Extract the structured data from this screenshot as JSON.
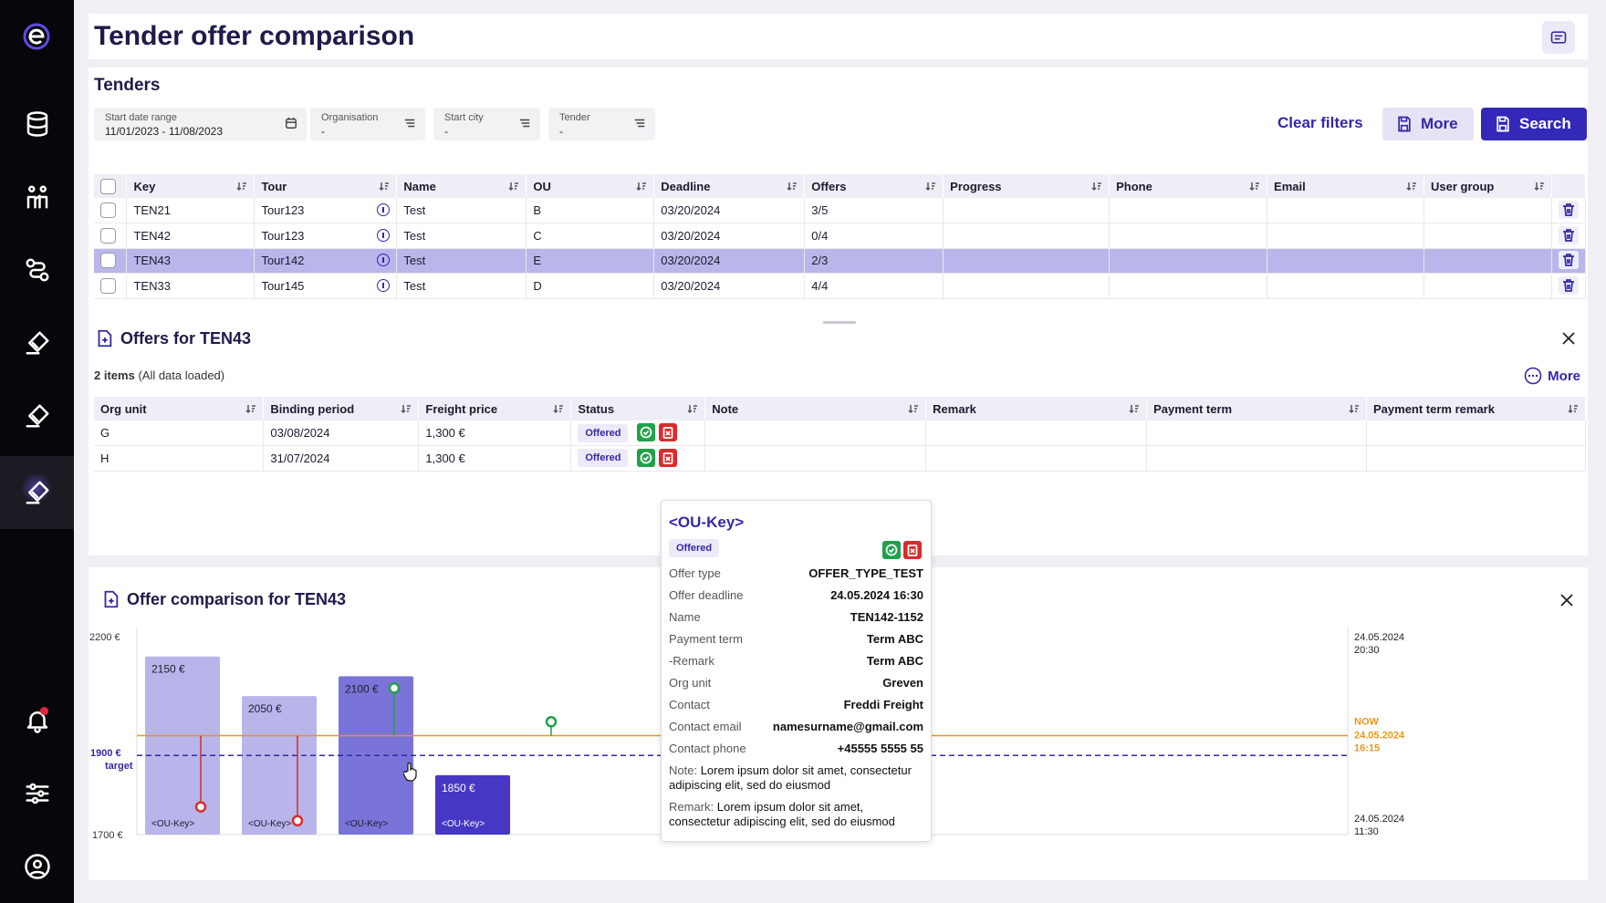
{
  "page": {
    "title": "Tender offer comparison"
  },
  "tenders": {
    "title": "Tenders",
    "filters": [
      {
        "label": "Start date range",
        "value": "11/01/2023 - 11/08/2023",
        "icon": "calendar-icon"
      },
      {
        "label": "Organisation",
        "value": "-",
        "icon": "filter-lines-icon"
      },
      {
        "label": "Start city",
        "value": "-",
        "icon": "filter-lines-icon"
      },
      {
        "label": "Tender",
        "value": "-",
        "icon": "filter-lines-icon"
      }
    ],
    "clear_filters": "Clear filters",
    "more_label": "More",
    "search_label": "Search",
    "columns": [
      "Key",
      "Tour",
      "Name",
      "OU",
      "Deadline",
      "Offers",
      "Progress",
      "Phone",
      "Email",
      "User group"
    ],
    "rows": [
      {
        "key": "TEN21",
        "tour": "Tour123",
        "name": "Test",
        "ou": "B",
        "deadline": "03/20/2024",
        "offers": "3/5"
      },
      {
        "key": "TEN42",
        "tour": "Tour123",
        "name": "Test",
        "ou": "C",
        "deadline": "03/20/2024",
        "offers": "0/4"
      },
      {
        "key": "TEN43",
        "tour": "Tour142",
        "name": "Test",
        "ou": "E",
        "deadline": "03/20/2024",
        "offers": "2/3",
        "selected": true
      },
      {
        "key": "TEN33",
        "tour": "Tour145",
        "name": "Test",
        "ou": "D",
        "deadline": "03/20/2024",
        "offers": "4/4"
      }
    ]
  },
  "offers": {
    "title": "Offers for TEN43",
    "count_label": "2 items",
    "loaded_label": "(All data loaded)",
    "more_label": "More",
    "columns": [
      "Org unit",
      "Binding period",
      "Freight price",
      "Status",
      "Note",
      "Remark",
      "Payment term",
      "Payment term remark"
    ],
    "rows": [
      {
        "org_unit": "G",
        "binding_period": "03/08/2024",
        "freight_price": "1,300 €",
        "status": "Offered"
      },
      {
        "org_unit": "H",
        "binding_period": "31/07/2024",
        "freight_price": "1,300 €",
        "status": "Offered"
      }
    ]
  },
  "tooltip": {
    "title": "<OU-Key>",
    "status": "Offered",
    "rows": [
      {
        "k": "Offer type",
        "v": "OFFER_TYPE_TEST"
      },
      {
        "k": "Offer deadline",
        "v": "24.05.2024 16:30"
      },
      {
        "k": "Name",
        "v": "TEN142-1152"
      },
      {
        "k": "Payment term",
        "v": "Term ABC"
      },
      {
        "k": "-Remark",
        "v": "Term ABC"
      },
      {
        "k": "Org unit",
        "v": "Greven"
      },
      {
        "k": "Contact",
        "v": "Freddi Freight"
      },
      {
        "k": "Contact email",
        "v": "namesurname@gmail.com"
      },
      {
        "k": "Contact phone",
        "v": "+45555 5555 55"
      }
    ],
    "note_label": "Note:",
    "note_line1": "Lorem ipsum dolor sit amet, consectetur",
    "note_line2": "adipiscing elit, sed do eiusmod",
    "remark_label": "Remark:",
    "remark_line1": "Lorem ipsum dolor sit amet,",
    "remark_line2": "consectetur adipiscing elit, sed do eiusmod"
  },
  "comparison": {
    "title": "Offer comparison for TEN43"
  },
  "chart_data": {
    "type": "bar",
    "ylim": [
      1700,
      2200
    ],
    "yticks": [
      "2200 €",
      "1700 €"
    ],
    "target": {
      "value": 1900,
      "label1": "1900 €",
      "label2": "target"
    },
    "now": {
      "value": 1950,
      "label1": "NOW",
      "label2": "24.05.2024",
      "label3": "16:15"
    },
    "time_top": {
      "date": "24.05.2024",
      "time": "20:30"
    },
    "time_bottom": {
      "date": "24.05.2024",
      "time": "11:30"
    },
    "bars": [
      {
        "value": 2150,
        "label": "2150 €",
        "key": "<OU-Key>",
        "marker": 1770,
        "marker_color": "red",
        "color": "#b8b5ea"
      },
      {
        "value": 2050,
        "label": "2050 €",
        "key": "<OU-Key>",
        "marker": 1735,
        "marker_color": "red",
        "color": "#b8b5ea"
      },
      {
        "value": 2100,
        "label": "2100 €",
        "key": "<OU-Key>",
        "marker": 2070,
        "marker_color": "green",
        "color": "#7b74d8"
      },
      {
        "value": 1850,
        "label": "1850 €",
        "key": "<OU-Key>",
        "marker": null,
        "color": "#4637c4"
      }
    ],
    "extra_marker": {
      "value": 1985,
      "color": "green"
    }
  },
  "colors": {
    "accent": "#3328a8",
    "now_line": "#e8961e",
    "target_line": "#3328a8"
  }
}
